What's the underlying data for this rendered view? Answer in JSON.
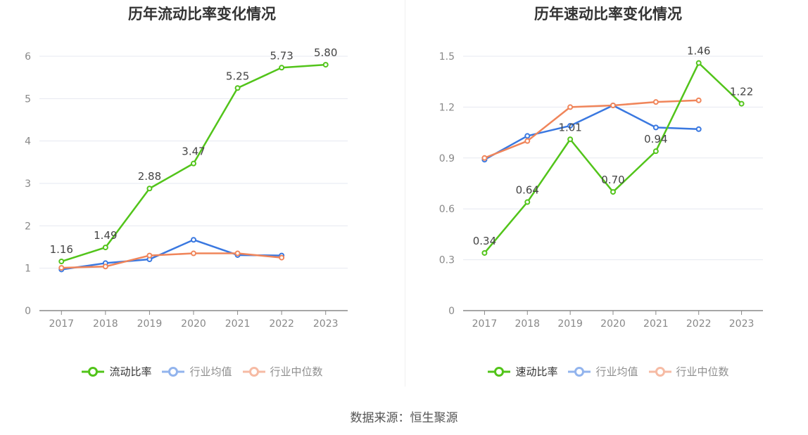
{
  "source_text": "数据来源：恒生聚源",
  "chart_data": [
    {
      "type": "line",
      "title": "历年流动比率变化情况",
      "categories": [
        "2017",
        "2018",
        "2019",
        "2020",
        "2021",
        "2022",
        "2023"
      ],
      "ylim": [
        0,
        6
      ],
      "yticks": [
        "0",
        "1",
        "2",
        "3",
        "4",
        "5",
        "6"
      ],
      "grid": true,
      "legend_position": "bottom",
      "series": [
        {
          "name": "流动比率",
          "color": "#52c41a",
          "values": [
            1.16,
            1.49,
            2.88,
            3.47,
            5.25,
            5.73,
            5.8
          ],
          "labels": [
            "1.16",
            "1.49",
            "2.88",
            "3.47",
            "5.25",
            "5.73",
            "5.80"
          ]
        },
        {
          "name": "行业均值",
          "color": "#3a78e0",
          "values": [
            0.97,
            1.12,
            1.21,
            1.67,
            1.31,
            1.3,
            null
          ]
        },
        {
          "name": "行业中位数",
          "color": "#f0855a",
          "values": [
            1.01,
            1.04,
            1.3,
            1.35,
            1.35,
            1.25,
            null
          ]
        }
      ]
    },
    {
      "type": "line",
      "title": "历年速动比率变化情况",
      "categories": [
        "2017",
        "2018",
        "2019",
        "2020",
        "2021",
        "2022",
        "2023"
      ],
      "ylim": [
        0,
        1.5
      ],
      "yticks": [
        "0",
        "0.3",
        "0.6",
        "0.9",
        "1.2",
        "1.5"
      ],
      "grid": true,
      "legend_position": "bottom",
      "series": [
        {
          "name": "速动比率",
          "color": "#52c41a",
          "values": [
            0.34,
            0.64,
            1.01,
            0.7,
            0.94,
            1.46,
            1.22
          ],
          "labels": [
            "0.34",
            "0.64",
            "1.01",
            "0.70",
            "0.94",
            "1.46",
            "1.22"
          ]
        },
        {
          "name": "行业均值",
          "color": "#3a78e0",
          "values": [
            0.89,
            1.03,
            1.09,
            1.21,
            1.08,
            1.07,
            null
          ]
        },
        {
          "name": "行业中位数",
          "color": "#f0855a",
          "values": [
            0.9,
            1.0,
            1.2,
            1.21,
            1.23,
            1.24,
            null
          ]
        }
      ]
    }
  ]
}
